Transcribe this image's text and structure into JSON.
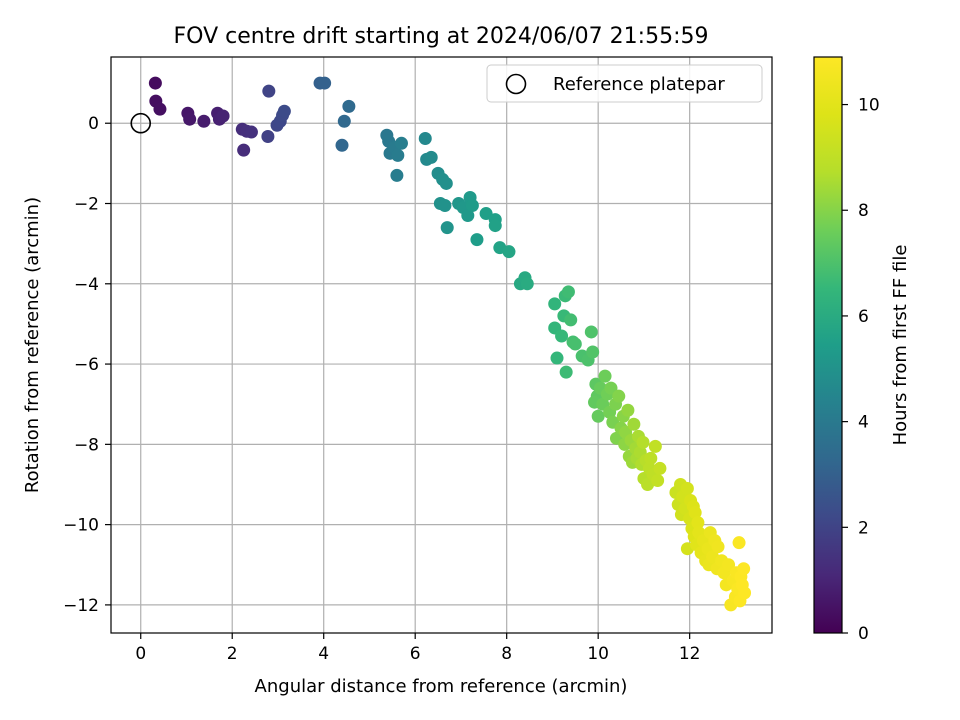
{
  "chart_data": {
    "type": "scatter",
    "title": "FOV centre drift starting at 2024/06/07 21:55:59",
    "xlabel": "Angular distance from reference (arcmin)",
    "ylabel": "Rotation from reference (arcmin)",
    "xlim": [
      -0.65,
      13.8
    ],
    "ylim": [
      -12.7,
      1.65
    ],
    "xticks": [
      0,
      2,
      4,
      6,
      8,
      10,
      12
    ],
    "yticks": [
      0,
      -2,
      -4,
      -6,
      -8,
      -10,
      -12
    ],
    "grid": true,
    "legend": {
      "placement": "top-right",
      "entries": [
        "Reference platepar"
      ]
    },
    "reference_point": {
      "name": "Reference platepar",
      "x": 0,
      "y": 0
    },
    "colorbar": {
      "label": "Hours from first FF file",
      "range": [
        0,
        10.9
      ],
      "ticks": [
        0,
        2,
        4,
        6,
        8,
        10
      ],
      "colormap": "viridis"
    },
    "point_fields": [
      "x",
      "y",
      "hours"
    ],
    "points": [
      [
        0.32,
        1.0,
        0.3
      ],
      [
        0.33,
        0.55,
        0.35
      ],
      [
        0.42,
        0.35,
        0.4
      ],
      [
        1.03,
        0.25,
        0.6
      ],
      [
        1.07,
        0.1,
        0.65
      ],
      [
        1.38,
        0.05,
        0.75
      ],
      [
        1.68,
        0.25,
        0.85
      ],
      [
        1.72,
        0.1,
        0.9
      ],
      [
        1.8,
        0.18,
        0.95
      ],
      [
        2.22,
        -0.15,
        1.3
      ],
      [
        2.32,
        -0.2,
        1.35
      ],
      [
        2.42,
        -0.22,
        1.4
      ],
      [
        2.25,
        -0.67,
        1.25
      ],
      [
        2.8,
        0.8,
        2.0
      ],
      [
        2.78,
        -0.33,
        1.9
      ],
      [
        2.98,
        -0.05,
        2.1
      ],
      [
        3.05,
        0.05,
        2.15
      ],
      [
        3.1,
        0.2,
        2.2
      ],
      [
        3.14,
        0.3,
        2.25
      ],
      [
        3.92,
        1.0,
        3.0
      ],
      [
        4.02,
        1.0,
        3.05
      ],
      [
        4.45,
        0.05,
        3.3
      ],
      [
        4.55,
        0.42,
        3.35
      ],
      [
        4.4,
        -0.55,
        3.25
      ],
      [
        5.38,
        -0.3,
        3.9
      ],
      [
        5.42,
        -0.45,
        3.95
      ],
      [
        5.45,
        -0.75,
        4.0
      ],
      [
        5.55,
        -0.6,
        4.05
      ],
      [
        5.62,
        -0.8,
        4.1
      ],
      [
        5.6,
        -1.3,
        4.15
      ],
      [
        5.7,
        -0.5,
        4.2
      ],
      [
        6.22,
        -0.38,
        4.6
      ],
      [
        6.25,
        -0.9,
        4.65
      ],
      [
        6.35,
        -0.85,
        4.7
      ],
      [
        6.5,
        -1.25,
        4.8
      ],
      [
        6.6,
        -1.4,
        4.85
      ],
      [
        6.68,
        -1.5,
        4.9
      ],
      [
        6.55,
        -2.0,
        4.95
      ],
      [
        6.65,
        -2.05,
        5.0
      ],
      [
        6.7,
        -2.6,
        5.05
      ],
      [
        6.95,
        -2.0,
        5.15
      ],
      [
        7.05,
        -2.1,
        5.2
      ],
      [
        7.15,
        -2.3,
        5.25
      ],
      [
        7.2,
        -1.85,
        5.3
      ],
      [
        7.25,
        -2.05,
        5.35
      ],
      [
        7.35,
        -2.9,
        5.4
      ],
      [
        7.55,
        -2.25,
        5.5
      ],
      [
        7.75,
        -2.4,
        5.55
      ],
      [
        7.75,
        -2.55,
        5.6
      ],
      [
        7.85,
        -3.1,
        5.65
      ],
      [
        8.05,
        -3.2,
        5.75
      ],
      [
        8.3,
        -4.0,
        5.9
      ],
      [
        8.4,
        -3.85,
        5.95
      ],
      [
        8.45,
        -4.0,
        6.0
      ],
      [
        9.05,
        -4.5,
        6.4
      ],
      [
        9.05,
        -5.1,
        6.45
      ],
      [
        9.1,
        -5.85,
        6.5
      ],
      [
        9.2,
        -5.3,
        6.55
      ],
      [
        9.25,
        -4.8,
        6.6
      ],
      [
        9.28,
        -4.3,
        6.65
      ],
      [
        9.3,
        -6.2,
        6.7
      ],
      [
        9.35,
        -4.2,
        6.75
      ],
      [
        9.4,
        -4.9,
        6.8
      ],
      [
        9.45,
        -5.45,
        6.85
      ],
      [
        9.5,
        -5.5,
        6.9
      ],
      [
        9.65,
        -5.8,
        6.95
      ],
      [
        9.78,
        -5.9,
        7.0
      ],
      [
        9.85,
        -5.2,
        7.05
      ],
      [
        9.88,
        -5.7,
        7.1
      ],
      [
        9.95,
        -6.5,
        7.3
      ],
      [
        9.98,
        -6.8,
        7.35
      ],
      [
        9.92,
        -6.95,
        7.4
      ],
      [
        10.0,
        -7.3,
        7.45
      ],
      [
        10.05,
        -6.6,
        7.5
      ],
      [
        10.1,
        -7.0,
        7.55
      ],
      [
        10.15,
        -6.3,
        7.6
      ],
      [
        10.2,
        -6.75,
        7.65
      ],
      [
        10.25,
        -7.2,
        7.7
      ],
      [
        10.28,
        -6.6,
        7.75
      ],
      [
        10.32,
        -7.45,
        7.8
      ],
      [
        10.38,
        -7.0,
        7.85
      ],
      [
        10.4,
        -7.85,
        7.9
      ],
      [
        10.45,
        -6.8,
        7.95
      ],
      [
        10.5,
        -7.6,
        8.0
      ],
      [
        10.55,
        -7.3,
        8.05
      ],
      [
        10.58,
        -8.0,
        8.1
      ],
      [
        10.6,
        -7.7,
        8.15
      ],
      [
        10.65,
        -7.15,
        8.2
      ],
      [
        10.68,
        -8.3,
        8.25
      ],
      [
        10.72,
        -7.9,
        8.3
      ],
      [
        10.75,
        -8.45,
        8.35
      ],
      [
        10.78,
        -7.5,
        8.4
      ],
      [
        10.82,
        -8.1,
        8.45
      ],
      [
        10.85,
        -8.35,
        8.5
      ],
      [
        10.88,
        -7.8,
        8.55
      ],
      [
        10.92,
        -8.2,
        8.6
      ],
      [
        10.95,
        -8.5,
        8.65
      ],
      [
        10.98,
        -7.95,
        8.7
      ],
      [
        11.0,
        -8.85,
        8.75
      ],
      [
        11.05,
        -8.4,
        8.8
      ],
      [
        11.08,
        -9.0,
        8.85
      ],
      [
        11.12,
        -8.6,
        8.9
      ],
      [
        11.15,
        -8.35,
        8.95
      ],
      [
        11.2,
        -8.75,
        9.0
      ],
      [
        11.25,
        -8.05,
        9.05
      ],
      [
        11.3,
        -8.9,
        9.1
      ],
      [
        11.35,
        -8.6,
        9.15
      ],
      [
        11.7,
        -9.2,
        9.3
      ],
      [
        11.75,
        -9.5,
        9.35
      ],
      [
        11.8,
        -9.0,
        9.4
      ],
      [
        11.82,
        -9.75,
        9.45
      ],
      [
        11.85,
        -9.3,
        9.5
      ],
      [
        11.9,
        -9.6,
        9.55
      ],
      [
        11.95,
        -10.6,
        9.6
      ],
      [
        11.95,
        -9.1,
        9.55
      ],
      [
        12.0,
        -9.85,
        9.65
      ],
      [
        12.02,
        -9.4,
        9.7
      ],
      [
        12.05,
        -10.1,
        9.75
      ],
      [
        12.08,
        -9.55,
        9.8
      ],
      [
        12.1,
        -10.3,
        9.85
      ],
      [
        12.12,
        -9.7,
        9.9
      ],
      [
        12.15,
        -10.5,
        9.95
      ],
      [
        12.18,
        -9.95,
        10.0
      ],
      [
        12.2,
        -10.2,
        10.05
      ],
      [
        12.25,
        -10.7,
        10.1
      ],
      [
        12.3,
        -10.4,
        10.15
      ],
      [
        12.35,
        -10.9,
        10.2
      ],
      [
        12.4,
        -10.6,
        10.25
      ],
      [
        12.42,
        -11.0,
        10.3
      ],
      [
        12.45,
        -10.2,
        10.3
      ],
      [
        12.5,
        -10.8,
        10.35
      ],
      [
        12.55,
        -10.4,
        10.4
      ],
      [
        12.6,
        -11.1,
        10.45
      ],
      [
        12.62,
        -10.55,
        10.45
      ],
      [
        12.7,
        -10.9,
        10.5
      ],
      [
        12.75,
        -11.2,
        10.55
      ],
      [
        12.8,
        -11.5,
        10.6
      ],
      [
        12.85,
        -11.0,
        10.6
      ],
      [
        12.9,
        -12.0,
        10.7
      ],
      [
        12.95,
        -11.4,
        10.7
      ],
      [
        13.0,
        -11.8,
        10.75
      ],
      [
        13.02,
        -11.2,
        10.75
      ],
      [
        13.05,
        -11.6,
        10.8
      ],
      [
        13.08,
        -10.45,
        10.8
      ],
      [
        13.1,
        -11.9,
        10.85
      ],
      [
        13.12,
        -11.3,
        10.85
      ],
      [
        13.15,
        -11.5,
        10.9
      ],
      [
        13.18,
        -11.1,
        10.9
      ],
      [
        13.2,
        -11.7,
        10.9
      ]
    ]
  }
}
